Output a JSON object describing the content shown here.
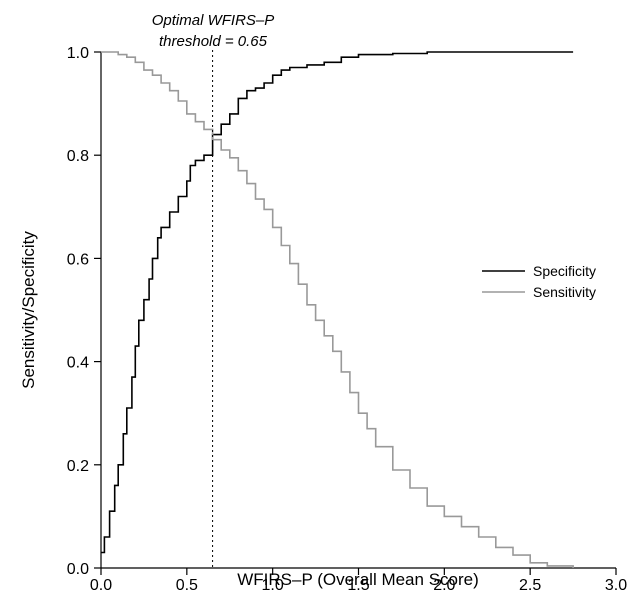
{
  "chart_data": {
    "type": "line",
    "title": "",
    "xlabel": "WFIRS–P (Overall Mean Score)",
    "ylabel": "Sensitivity/Specificity",
    "xlim": [
      0,
      3
    ],
    "ylim": [
      0,
      1
    ],
    "x_ticks": [
      "0.0",
      "0.5",
      "1.0",
      "1.5",
      "2.0",
      "2.5",
      "3.0"
    ],
    "y_ticks": [
      "0.0",
      "0.2",
      "0.4",
      "0.6",
      "0.8",
      "1.0"
    ],
    "grid": false,
    "legend": {
      "position": "right",
      "entries": [
        "Specificity",
        "Sensitivity"
      ]
    },
    "series": [
      {
        "name": "Specificity",
        "color": "#000000",
        "points": [
          [
            0.0,
            0.03
          ],
          [
            0.02,
            0.06
          ],
          [
            0.05,
            0.11
          ],
          [
            0.08,
            0.16
          ],
          [
            0.1,
            0.2
          ],
          [
            0.13,
            0.26
          ],
          [
            0.15,
            0.31
          ],
          [
            0.18,
            0.37
          ],
          [
            0.2,
            0.43
          ],
          [
            0.22,
            0.48
          ],
          [
            0.25,
            0.52
          ],
          [
            0.28,
            0.56
          ],
          [
            0.3,
            0.6
          ],
          [
            0.33,
            0.64
          ],
          [
            0.35,
            0.66
          ],
          [
            0.4,
            0.69
          ],
          [
            0.45,
            0.72
          ],
          [
            0.5,
            0.75
          ],
          [
            0.52,
            0.78
          ],
          [
            0.55,
            0.79
          ],
          [
            0.6,
            0.8
          ],
          [
            0.65,
            0.84
          ],
          [
            0.7,
            0.86
          ],
          [
            0.75,
            0.88
          ],
          [
            0.8,
            0.91
          ],
          [
            0.85,
            0.925
          ],
          [
            0.9,
            0.93
          ],
          [
            0.95,
            0.94
          ],
          [
            1.0,
            0.955
          ],
          [
            1.05,
            0.965
          ],
          [
            1.1,
            0.97
          ],
          [
            1.2,
            0.975
          ],
          [
            1.3,
            0.98
          ],
          [
            1.4,
            0.99
          ],
          [
            1.5,
            0.995
          ],
          [
            1.7,
            0.997
          ],
          [
            1.9,
            1.0
          ],
          [
            2.0,
            1.0
          ],
          [
            2.5,
            1.0
          ],
          [
            2.75,
            1.0
          ]
        ]
      },
      {
        "name": "Sensitivity",
        "color": "#999999",
        "points": [
          [
            0.0,
            1.0
          ],
          [
            0.1,
            0.995
          ],
          [
            0.15,
            0.99
          ],
          [
            0.2,
            0.98
          ],
          [
            0.25,
            0.965
          ],
          [
            0.3,
            0.955
          ],
          [
            0.35,
            0.94
          ],
          [
            0.4,
            0.925
          ],
          [
            0.45,
            0.905
          ],
          [
            0.5,
            0.88
          ],
          [
            0.55,
            0.865
          ],
          [
            0.6,
            0.85
          ],
          [
            0.65,
            0.83
          ],
          [
            0.7,
            0.81
          ],
          [
            0.75,
            0.795
          ],
          [
            0.8,
            0.77
          ],
          [
            0.85,
            0.745
          ],
          [
            0.9,
            0.715
          ],
          [
            0.95,
            0.695
          ],
          [
            1.0,
            0.66
          ],
          [
            1.05,
            0.625
          ],
          [
            1.1,
            0.59
          ],
          [
            1.15,
            0.55
          ],
          [
            1.2,
            0.51
          ],
          [
            1.25,
            0.48
          ],
          [
            1.3,
            0.45
          ],
          [
            1.35,
            0.42
          ],
          [
            1.4,
            0.38
          ],
          [
            1.45,
            0.34
          ],
          [
            1.5,
            0.3
          ],
          [
            1.55,
            0.27
          ],
          [
            1.6,
            0.235
          ],
          [
            1.7,
            0.19
          ],
          [
            1.8,
            0.155
          ],
          [
            1.9,
            0.12
          ],
          [
            2.0,
            0.1
          ],
          [
            2.1,
            0.08
          ],
          [
            2.2,
            0.06
          ],
          [
            2.3,
            0.04
          ],
          [
            2.4,
            0.025
          ],
          [
            2.5,
            0.01
          ],
          [
            2.6,
            0.004
          ],
          [
            2.75,
            0.0
          ]
        ]
      }
    ],
    "reference_line": {
      "x": 0.65,
      "style": "dotted"
    },
    "annotation": {
      "line1": "Optimal WFIRS–P",
      "line2": "threshold = 0.65"
    }
  }
}
